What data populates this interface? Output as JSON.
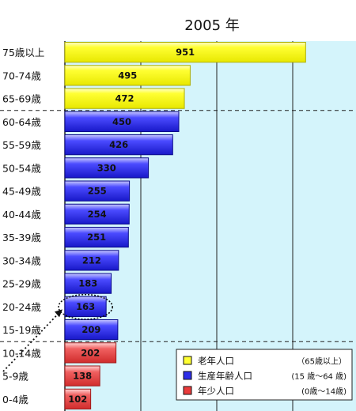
{
  "chart_data": {
    "type": "bar",
    "orientation": "horizontal",
    "title": "2005 年",
    "xlim": [
      0,
      1000
    ],
    "grid": "vertical",
    "categories": [
      "75歳以上",
      "70-74歳",
      "65-69歳",
      "60-64歳",
      "55-59歳",
      "50-54歳",
      "45-49歳",
      "40-44歳",
      "35-39歳",
      "30-34歳",
      "25-29歳",
      "20-24歳",
      "15-19歳",
      "10-14歳",
      "5-9歳",
      "0-4歳"
    ],
    "values": [
      951,
      495,
      472,
      450,
      426,
      330,
      255,
      254,
      251,
      212,
      183,
      163,
      209,
      202,
      138,
      102
    ],
    "groups": [
      "elderly",
      "elderly",
      "elderly",
      "working",
      "working",
      "working",
      "working",
      "working",
      "working",
      "working",
      "working",
      "working",
      "working",
      "young",
      "young",
      "young"
    ],
    "highlight_index": 11,
    "group_colors": {
      "elderly": "#ffff33",
      "working": "#2e2ee8",
      "young": "#ea3b3b"
    },
    "legend": {
      "position": "bottom-right",
      "items": [
        {
          "group": "elderly",
          "label": "老年人口",
          "note": "（65歳以上）"
        },
        {
          "group": "working",
          "label": "生産年齢人口",
          "note": "(15 歳〜64 歳)"
        },
        {
          "group": "young",
          "label": "年少人口",
          "note": "(0歳〜14歳)"
        }
      ]
    }
  }
}
